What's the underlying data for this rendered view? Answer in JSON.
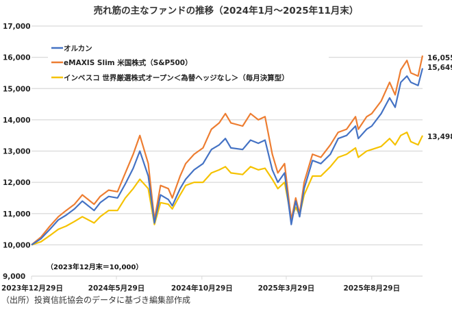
{
  "chart_data": {
    "type": "line",
    "title": "売れ筋の主なファンドの推移（2024年1月～2025年11月末）",
    "xlabel": "",
    "ylabel": "",
    "ylim": [
      9000,
      17000
    ],
    "yticks": [
      "17,000",
      "16,000",
      "15,000",
      "14,000",
      "13,000",
      "12,000",
      "11,000",
      "10,000",
      "9,000"
    ],
    "ytick_values": [
      17000,
      16000,
      15000,
      14000,
      13000,
      12000,
      11000,
      10000,
      9000
    ],
    "xlim": [
      "2023-12-29",
      "2025-11-28"
    ],
    "xticks": [
      {
        "date": "2023-12-29",
        "label": "2023年12月29日"
      },
      {
        "date": "2024-05-29",
        "label": "2024年5月29日"
      },
      {
        "date": "2024-10-29",
        "label": "2024年10月29日"
      },
      {
        "date": "2025-03-29",
        "label": "2025年3月29日"
      },
      {
        "date": "2025-08-29",
        "label": "2025年8月29日"
      }
    ],
    "grid": true,
    "legend_position": "top-left",
    "annotation": "（2023年12月末＝10,000）",
    "x": [
      "2023-12-29",
      "2024-01-15",
      "2024-01-31",
      "2024-02-15",
      "2024-02-29",
      "2024-03-15",
      "2024-03-29",
      "2024-04-19",
      "2024-04-30",
      "2024-05-15",
      "2024-05-31",
      "2024-06-14",
      "2024-06-28",
      "2024-07-10",
      "2024-07-25",
      "2024-08-05",
      "2024-08-16",
      "2024-08-30",
      "2024-09-06",
      "2024-09-20",
      "2024-09-30",
      "2024-10-15",
      "2024-10-31",
      "2024-11-15",
      "2024-11-29",
      "2024-12-10",
      "2024-12-20",
      "2025-01-10",
      "2025-01-24",
      "2025-02-07",
      "2025-02-19",
      "2025-03-04",
      "2025-03-14",
      "2025-03-26",
      "2025-04-07",
      "2025-04-15",
      "2025-04-22",
      "2025-04-30",
      "2025-05-15",
      "2025-05-30",
      "2025-06-16",
      "2025-06-30",
      "2025-07-15",
      "2025-07-31",
      "2025-08-05",
      "2025-08-20",
      "2025-08-29",
      "2025-09-15",
      "2025-09-30",
      "2025-10-10",
      "2025-10-20",
      "2025-10-31",
      "2025-11-07",
      "2025-11-20",
      "2025-11-28"
    ],
    "series": [
      {
        "name": "オルカン",
        "color": "#4472c4",
        "end_label": "15,649",
        "values": [
          10000,
          10200,
          10500,
          10800,
          10950,
          11150,
          11400,
          11100,
          11350,
          11550,
          11500,
          11950,
          12450,
          13000,
          12200,
          10700,
          11600,
          11450,
          11250,
          11800,
          12100,
          12400,
          12600,
          13050,
          13200,
          13400,
          13100,
          13050,
          13350,
          13250,
          13350,
          12400,
          12000,
          12300,
          10650,
          11400,
          10900,
          11800,
          12700,
          12600,
          12900,
          13400,
          13500,
          13800,
          13400,
          13700,
          13800,
          14200,
          14700,
          14400,
          15200,
          15400,
          15200,
          15100,
          15649
        ]
      },
      {
        "name": "eMAXIS Slim 米国株式（S&P500）",
        "color": "#ed7d31",
        "end_label": "16,055",
        "values": [
          10000,
          10250,
          10600,
          10900,
          11100,
          11300,
          11600,
          11300,
          11550,
          11750,
          11700,
          12300,
          12900,
          13500,
          12600,
          10800,
          11900,
          11800,
          11500,
          12200,
          12600,
          12900,
          13100,
          13700,
          13900,
          14200,
          13900,
          13800,
          14200,
          14000,
          14100,
          12900,
          12300,
          12600,
          10800,
          11500,
          11000,
          12000,
          12900,
          12800,
          13200,
          13600,
          13700,
          14100,
          13700,
          14100,
          14200,
          14600,
          15200,
          14800,
          15600,
          15900,
          15500,
          15400,
          16055
        ]
      },
      {
        "name": "インベスコ 世界厳選株式オープン＜為替ヘッジなし＞（毎月決算型）",
        "color": "#f5c200",
        "end_label": "13,498",
        "values": [
          10000,
          10100,
          10300,
          10500,
          10600,
          10750,
          10900,
          10700,
          10900,
          11100,
          11100,
          11500,
          11800,
          12100,
          11800,
          10650,
          11350,
          11300,
          11150,
          11600,
          11900,
          12000,
          12000,
          12300,
          12400,
          12500,
          12300,
          12250,
          12500,
          12400,
          12450,
          12100,
          11800,
          12000,
          10850,
          11200,
          10950,
          11600,
          12200,
          12200,
          12500,
          12800,
          12900,
          13100,
          12800,
          13000,
          13050,
          13150,
          13400,
          13200,
          13500,
          13600,
          13300,
          13200,
          13498
        ]
      }
    ]
  },
  "source_note": "（出所）投資信託協会のデータに基づき編集部作成"
}
